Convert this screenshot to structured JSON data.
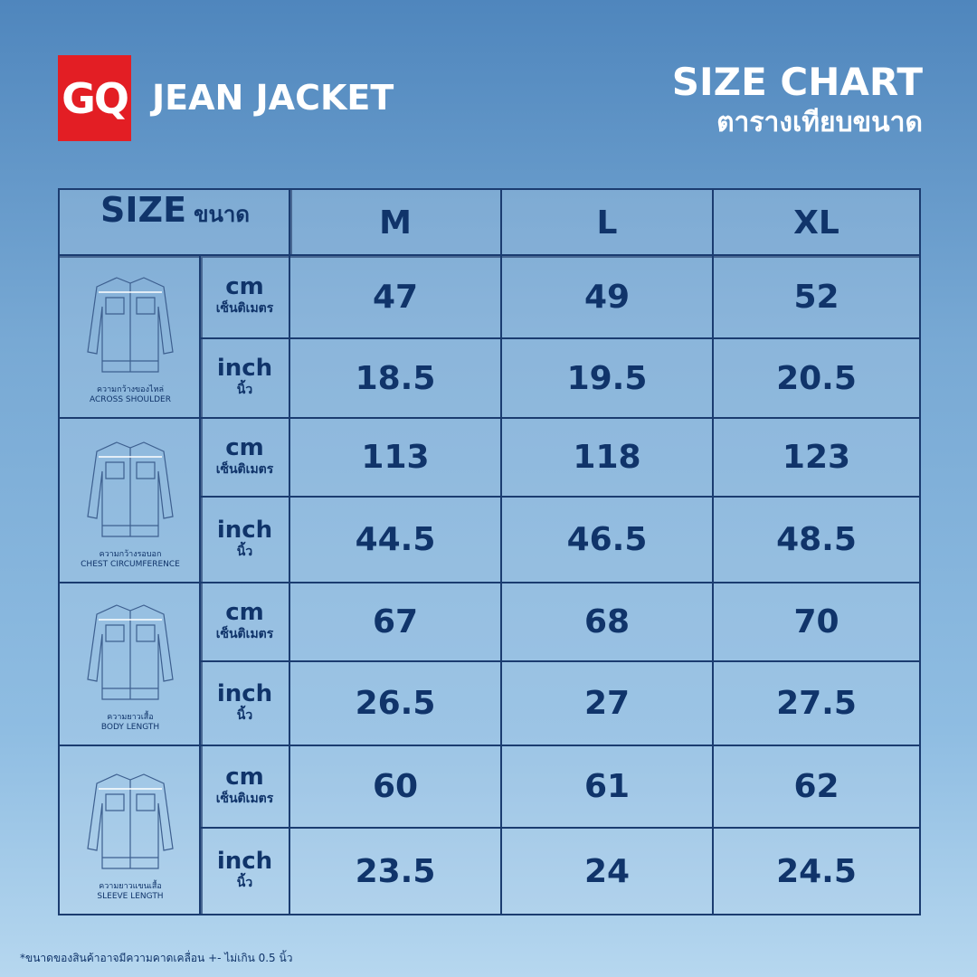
{
  "logo": "GQ",
  "product": "JEAN JACKET",
  "title": "SIZE CHART",
  "subtitle": "ตารางเทียบขนาด",
  "table": {
    "size_label": "SIZE",
    "size_label_thai": "ขนาด",
    "sizes": [
      "M",
      "L",
      "XL"
    ],
    "groups": [
      {
        "label_thai": "ความกว้างของไหล่",
        "label": "ACROSS SHOULDER",
        "rows": [
          {
            "unit": "cm",
            "unit_thai": "เซ็นติเมตร",
            "values": [
              "47",
              "49",
              "52"
            ]
          },
          {
            "unit": "inch",
            "unit_thai": "นิ้ว",
            "values": [
              "18.5",
              "19.5",
              "20.5"
            ]
          }
        ]
      },
      {
        "label_thai": "ความกว้างรอบอก",
        "label": "CHEST CIRCUMFERENCE",
        "rows": [
          {
            "unit": "cm",
            "unit_thai": "เซ็นติเมตร",
            "values": [
              "113",
              "118",
              "123"
            ]
          },
          {
            "unit": "inch",
            "unit_thai": "นิ้ว",
            "values": [
              "44.5",
              "46.5",
              "48.5"
            ]
          }
        ]
      },
      {
        "label_thai": "ความยาวเสื้อ",
        "label": "BODY LENGTH",
        "rows": [
          {
            "unit": "cm",
            "unit_thai": "เซ็นติเมตร",
            "values": [
              "67",
              "68",
              "70"
            ]
          },
          {
            "unit": "inch",
            "unit_thai": "นิ้ว",
            "values": [
              "26.5",
              "27",
              "27.5"
            ]
          }
        ]
      },
      {
        "label_thai": "ความยาวแขนเสื้อ",
        "label": "SLEEVE LENGTH",
        "rows": [
          {
            "unit": "cm",
            "unit_thai": "เซ็นติเมตร",
            "values": [
              "60",
              "61",
              "62"
            ]
          },
          {
            "unit": "inch",
            "unit_thai": "นิ้ว",
            "values": [
              "23.5",
              "24",
              "24.5"
            ]
          }
        ]
      }
    ]
  },
  "footnote": "*ขนาดของสินค้าอาจมีความคาดเคลื่อน +- ไม่เกิน 0.5 นิ้ว"
}
